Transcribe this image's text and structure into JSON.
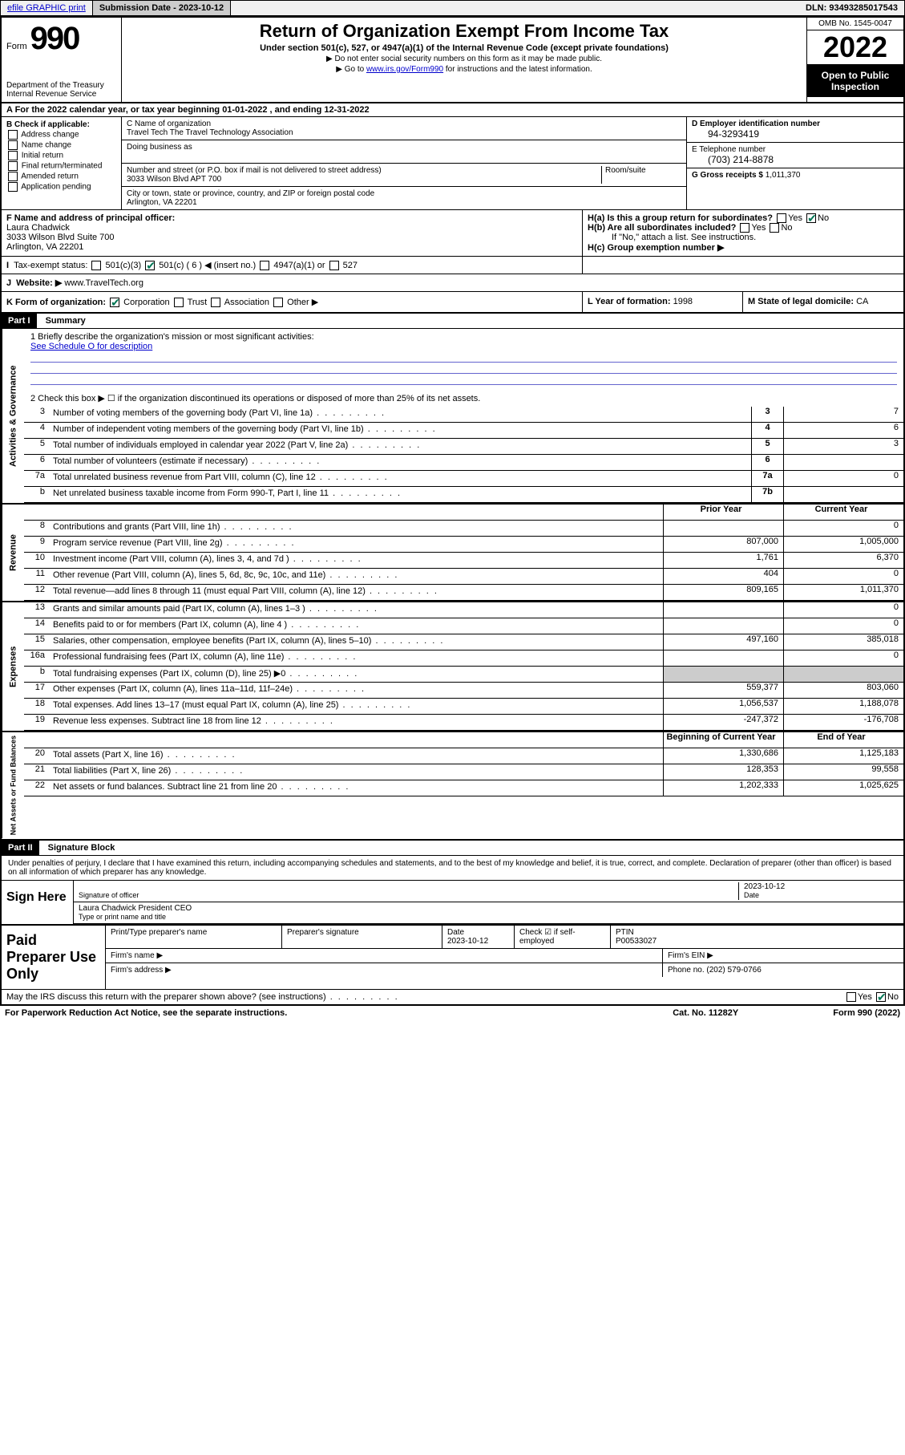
{
  "top": {
    "efile": "efile GRAPHIC print",
    "submission_label": "Submission Date - 2023-10-12",
    "dln": "DLN: 93493285017543"
  },
  "header": {
    "form_word": "Form",
    "form_num": "990",
    "dept": "Department of the Treasury",
    "irs": "Internal Revenue Service",
    "title": "Return of Organization Exempt From Income Tax",
    "sub": "Under section 501(c), 527, or 4947(a)(1) of the Internal Revenue Code (except private foundations)",
    "note1": "▶ Do not enter social security numbers on this form as it may be made public.",
    "note2_pre": "▶ Go to ",
    "note2_link": "www.irs.gov/Form990",
    "note2_post": " for instructions and the latest information.",
    "omb": "OMB No. 1545-0047",
    "year": "2022",
    "open": "Open to Public Inspection"
  },
  "rowA": "A For the 2022 calendar year, or tax year beginning 01-01-2022   , and ending 12-31-2022",
  "B": {
    "title": "B Check if applicable:",
    "opts": [
      "Address change",
      "Name change",
      "Initial return",
      "Final return/terminated",
      "Amended return",
      "Application pending"
    ]
  },
  "C": {
    "name_label": "C Name of organization",
    "name": "Travel Tech The Travel Technology Association",
    "dba_label": "Doing business as",
    "addr_label": "Number and street (or P.O. box if mail is not delivered to street address)",
    "room_label": "Room/suite",
    "addr": "3033 Wilson Blvd APT 700",
    "city_label": "City or town, state or province, country, and ZIP or foreign postal code",
    "city": "Arlington, VA  22201"
  },
  "D": {
    "label": "D Employer identification number",
    "val": "94-3293419"
  },
  "E": {
    "label": "E Telephone number",
    "val": "(703) 214-8878"
  },
  "G": {
    "label": "G Gross receipts $",
    "val": "1,011,370"
  },
  "F": {
    "label": "F  Name and address of principal officer:",
    "name": "Laura Chadwick",
    "addr1": "3033 Wilson Blvd Suite 700",
    "addr2": "Arlington, VA  22201"
  },
  "H": {
    "a_label": "H(a)  Is this a group return for subordinates?",
    "b_label": "H(b)  Are all subordinates included?",
    "b_note": "If \"No,\" attach a list. See instructions.",
    "c_label": "H(c)  Group exemption number ▶"
  },
  "I": {
    "label": "Tax-exempt status:",
    "insert": "501(c) ( 6 ) ◀ (insert no.)",
    "c3": "501(c)(3)",
    "a4947": "4947(a)(1) or",
    "s527": "527"
  },
  "J": {
    "label": "Website: ▶",
    "val": "www.TravelTech.org"
  },
  "K": {
    "label": "K Form of organization:",
    "corp": "Corporation",
    "trust": "Trust",
    "assoc": "Association",
    "other": "Other ▶"
  },
  "L": {
    "label": "L Year of formation:",
    "val": "1998"
  },
  "M": {
    "label": "M State of legal domicile:",
    "val": "CA"
  },
  "part1": {
    "hdr": "Part I",
    "title": "Summary",
    "q1": "1  Briefly describe the organization's mission or most significant activities:",
    "q1_val": "See Schedule O for description",
    "q2": "2  Check this box ▶ ☐  if the organization discontinued its operations or disposed of more than 25% of its net assets.",
    "rows_gov": [
      {
        "n": "3",
        "lbl": "Number of voting members of the governing body (Part VI, line 1a)",
        "box": "3",
        "val": "7"
      },
      {
        "n": "4",
        "lbl": "Number of independent voting members of the governing body (Part VI, line 1b)",
        "box": "4",
        "val": "6"
      },
      {
        "n": "5",
        "lbl": "Total number of individuals employed in calendar year 2022 (Part V, line 2a)",
        "box": "5",
        "val": "3"
      },
      {
        "n": "6",
        "lbl": "Total number of volunteers (estimate if necessary)",
        "box": "6",
        "val": ""
      },
      {
        "n": "7a",
        "lbl": "Total unrelated business revenue from Part VIII, column (C), line 12",
        "box": "7a",
        "val": "0"
      },
      {
        "n": "b",
        "lbl": "Net unrelated business taxable income from Form 990-T, Part I, line 11",
        "box": "7b",
        "val": ""
      }
    ],
    "col_prior": "Prior Year",
    "col_curr": "Current Year",
    "rows_rev": [
      {
        "n": "8",
        "lbl": "Contributions and grants (Part VIII, line 1h)",
        "p": "",
        "c": "0"
      },
      {
        "n": "9",
        "lbl": "Program service revenue (Part VIII, line 2g)",
        "p": "807,000",
        "c": "1,005,000"
      },
      {
        "n": "10",
        "lbl": "Investment income (Part VIII, column (A), lines 3, 4, and 7d )",
        "p": "1,761",
        "c": "6,370"
      },
      {
        "n": "11",
        "lbl": "Other revenue (Part VIII, column (A), lines 5, 6d, 8c, 9c, 10c, and 11e)",
        "p": "404",
        "c": "0"
      },
      {
        "n": "12",
        "lbl": "Total revenue—add lines 8 through 11 (must equal Part VIII, column (A), line 12)",
        "p": "809,165",
        "c": "1,011,370"
      }
    ],
    "rows_exp": [
      {
        "n": "13",
        "lbl": "Grants and similar amounts paid (Part IX, column (A), lines 1–3 )",
        "p": "",
        "c": "0"
      },
      {
        "n": "14",
        "lbl": "Benefits paid to or for members (Part IX, column (A), line 4 )",
        "p": "",
        "c": "0"
      },
      {
        "n": "15",
        "lbl": "Salaries, other compensation, employee benefits (Part IX, column (A), lines 5–10)",
        "p": "497,160",
        "c": "385,018"
      },
      {
        "n": "16a",
        "lbl": "Professional fundraising fees (Part IX, column (A), line 11e)",
        "p": "",
        "c": "0"
      },
      {
        "n": "b",
        "lbl": "Total fundraising expenses (Part IX, column (D), line 25) ▶0",
        "p": "SHADE",
        "c": "SHADE"
      },
      {
        "n": "17",
        "lbl": "Other expenses (Part IX, column (A), lines 11a–11d, 11f–24e)",
        "p": "559,377",
        "c": "803,060"
      },
      {
        "n": "18",
        "lbl": "Total expenses. Add lines 13–17 (must equal Part IX, column (A), line 25)",
        "p": "1,056,537",
        "c": "1,188,078"
      },
      {
        "n": "19",
        "lbl": "Revenue less expenses. Subtract line 18 from line 12",
        "p": "-247,372",
        "c": "-176,708"
      }
    ],
    "col_begin": "Beginning of Current Year",
    "col_end": "End of Year",
    "rows_net": [
      {
        "n": "20",
        "lbl": "Total assets (Part X, line 16)",
        "p": "1,330,686",
        "c": "1,125,183"
      },
      {
        "n": "21",
        "lbl": "Total liabilities (Part X, line 26)",
        "p": "128,353",
        "c": "99,558"
      },
      {
        "n": "22",
        "lbl": "Net assets or fund balances. Subtract line 21 from line 20",
        "p": "1,202,333",
        "c": "1,025,625"
      }
    ],
    "side_gov": "Activities & Governance",
    "side_rev": "Revenue",
    "side_exp": "Expenses",
    "side_net": "Net Assets or Fund Balances"
  },
  "part2": {
    "hdr": "Part II",
    "title": "Signature Block",
    "decl": "Under penalties of perjury, I declare that I have examined this return, including accompanying schedules and statements, and to the best of my knowledge and belief, it is true, correct, and complete. Declaration of preparer (other than officer) is based on all information of which preparer has any knowledge.",
    "sign_here": "Sign Here",
    "sig_officer": "Signature of officer",
    "sig_date": "2023-10-12",
    "date_lbl": "Date",
    "sig_name": "Laura Chadwick  President CEO",
    "sig_name_lbl": "Type or print name and title",
    "paid": "Paid Preparer Use Only",
    "prep_name_lbl": "Print/Type preparer's name",
    "prep_sig_lbl": "Preparer's signature",
    "prep_date_lbl": "Date",
    "prep_date": "2023-10-12",
    "prep_self": "Check ☑ if self-employed",
    "ptin_lbl": "PTIN",
    "ptin": "P00533027",
    "firm_name": "Firm's name    ▶",
    "firm_ein": "Firm's EIN ▶",
    "firm_addr": "Firm's address ▶",
    "firm_phone_lbl": "Phone no.",
    "firm_phone": "(202) 579-0766",
    "may_irs": "May the IRS discuss this return with the preparer shown above? (see instructions)",
    "paperwork": "For Paperwork Reduction Act Notice, see the separate instructions.",
    "catno": "Cat. No. 11282Y",
    "formno": "Form 990 (2022)"
  }
}
